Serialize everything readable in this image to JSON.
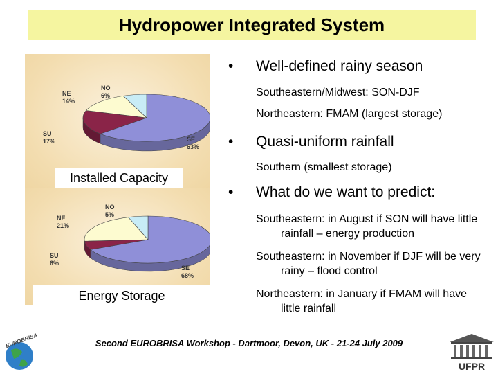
{
  "title": "Hydropower Integrated System",
  "chart_data": [
    {
      "type": "pie",
      "caption": "Installed Capacity",
      "slices": [
        {
          "name": "SE",
          "value": 63,
          "label": "63%",
          "color": "#8f8fd8"
        },
        {
          "name": "SU",
          "value": 17,
          "label": "17%",
          "color": "#8a2448"
        },
        {
          "name": "NE",
          "value": 14,
          "label": "14%",
          "color": "#fdfbd0"
        },
        {
          "name": "NO",
          "value": 6,
          "label": "6%",
          "color": "#c8ecf6"
        }
      ]
    },
    {
      "type": "pie",
      "caption": "Energy Storage",
      "slices": [
        {
          "name": "SE",
          "value": 68,
          "label": "68%",
          "color": "#8f8fd8"
        },
        {
          "name": "SU",
          "value": 6,
          "label": "6%",
          "color": "#8a2448"
        },
        {
          "name": "NE",
          "value": 21,
          "label": "21%",
          "color": "#fdfbd0"
        },
        {
          "name": "NO",
          "value": 5,
          "label": "5%",
          "color": "#c8ecf6"
        }
      ]
    }
  ],
  "bullets": [
    {
      "symbol": "•",
      "text": "Well-defined rainy season"
    },
    {
      "symbol": "•",
      "text": "Quasi-uniform rainfall"
    },
    {
      "symbol": "•",
      "text": "What do we want to predict:"
    }
  ],
  "subitems": [
    "Southeastern/Midwest: SON-DJF",
    "Northeastern: FMAM (largest storage)",
    "Southern (smallest storage)",
    "Southeastern: in August if SON will have little rainfall – energy production",
    "Southeastern: in November if DJF will be very rainy – flood control",
    "Northeastern: in January if FMAM will have little rainfall"
  ],
  "footer": "Second EUROBRISA Workshop - Dartmoor, Devon, UK - 21-24 July 2009",
  "logos": {
    "left": "EUROBRISA",
    "right": "UFPR"
  }
}
